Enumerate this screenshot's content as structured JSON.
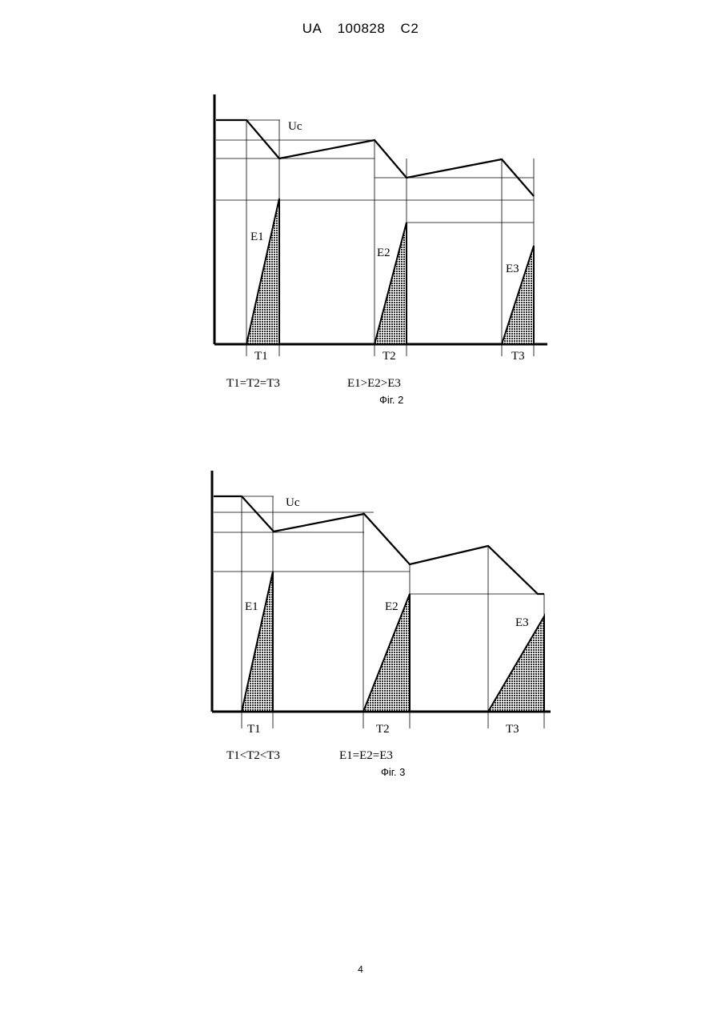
{
  "header": {
    "country": "UA",
    "number": "100828",
    "kind": "C2"
  },
  "figures": [
    {
      "caption": "Фіг. 2",
      "voltage_label": "Uc",
      "pulses": [
        {
          "energy_label": "E1",
          "period_label": "T1"
        },
        {
          "energy_label": "E2",
          "period_label": "T2"
        },
        {
          "energy_label": "E3",
          "period_label": "T3"
        }
      ],
      "relation_time": "T1=T2=T3",
      "relation_energy": "E1>E2>E3"
    },
    {
      "caption": "Фіг. 3",
      "voltage_label": "Uc",
      "pulses": [
        {
          "energy_label": "E1",
          "period_label": "T1"
        },
        {
          "energy_label": "E2",
          "period_label": "T2"
        },
        {
          "energy_label": "E3",
          "period_label": "T3"
        }
      ],
      "relation_time": "T1<T2<T3",
      "relation_energy": "E1=E2=E3"
    }
  ],
  "page_number": "4"
}
